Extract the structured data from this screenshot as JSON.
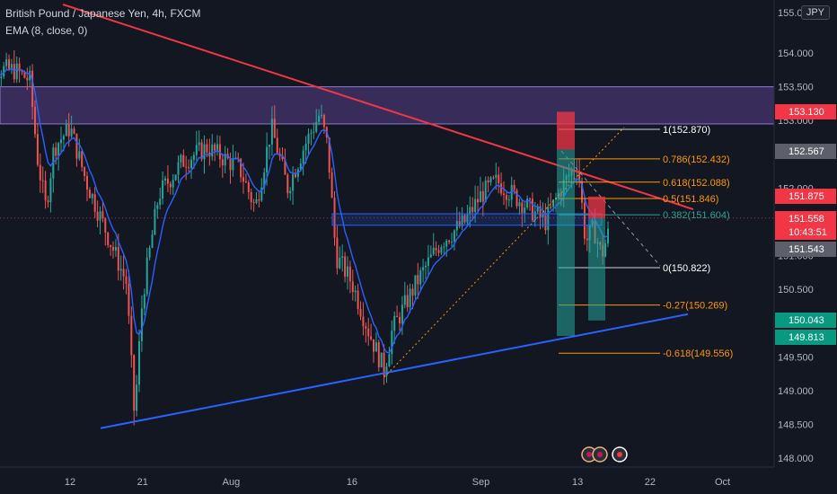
{
  "header": {
    "title": "British Pound / Japanese Yen, 4h, FXCM",
    "indicator": "EMA (8, close, 0)"
  },
  "currency_badge": "JPY",
  "colors": {
    "background": "#131722",
    "up": "#26a69a",
    "down": "#ef5350",
    "ema": "#2962ff",
    "resistance_line": "#f23645",
    "support_line": "#2962ff",
    "zone": "#7e57c2",
    "fib": "#ff9800"
  },
  "chart_data": {
    "type": "candlestick",
    "symbol": "British Pound / Japanese Yen",
    "timeframe": "4h",
    "source": "FXCM",
    "y_range": [
      148.0,
      155.0
    ],
    "y_ticks": [
      "155.000",
      "154.000",
      "153.500",
      "153.000",
      "152.000",
      "151.000",
      "150.500",
      "149.500",
      "149.000",
      "148.500",
      "148.000"
    ],
    "x_ticks": [
      "12",
      "21",
      "Aug",
      "16",
      "Sep",
      "13",
      "22",
      "Oct"
    ],
    "price_path": [
      [
        "Jul 5",
        153.75
      ],
      [
        "Jul 7",
        153.6
      ],
      [
        "Jul 8",
        152.4
      ],
      [
        "Jul 9",
        151.7
      ],
      [
        "Jul 10",
        152.6
      ],
      [
        "Jul 12",
        152.9
      ],
      [
        "Jul 14",
        152.1
      ],
      [
        "Jul 16",
        151.5
      ],
      [
        "Jul 19",
        150.6
      ],
      [
        "Jul 20",
        148.6
      ],
      [
        "Jul 21",
        150.4
      ],
      [
        "Jul 23",
        151.9
      ],
      [
        "Jul 26",
        152.4
      ],
      [
        "Jul 29",
        152.6
      ],
      [
        "Aug 2",
        152.3
      ],
      [
        "Aug 4",
        151.7
      ],
      [
        "Aug 6",
        152.9
      ],
      [
        "Aug 8",
        152.0
      ],
      [
        "Aug 10",
        152.6
      ],
      [
        "Aug 12",
        153.1
      ],
      [
        "Aug 13",
        152.6
      ],
      [
        "Aug 14",
        151.0
      ],
      [
        "Aug 16",
        150.6
      ],
      [
        "Aug 18",
        149.9
      ],
      [
        "Aug 20",
        149.3
      ],
      [
        "Aug 21",
        149.9
      ],
      [
        "Aug 24",
        150.6
      ],
      [
        "Aug 27",
        151.2
      ],
      [
        "Aug 30",
        151.5
      ],
      [
        "Sep 1",
        151.9
      ],
      [
        "Sep 3",
        152.1
      ],
      [
        "Sep 6",
        151.8
      ],
      [
        "Sep 9",
        151.5
      ],
      [
        "Sep 11",
        152.0
      ],
      [
        "Sep 13",
        152.4
      ],
      [
        "Sep 14",
        151.2
      ],
      [
        "Sep 15",
        151.4
      ],
      [
        "Sep 16",
        151.0
      ],
      [
        "Sep 17",
        151.4
      ]
    ],
    "price_labels": [
      {
        "label": "153.130",
        "color": "#f23645"
      },
      {
        "label": "152.567",
        "color": "#5d606b"
      },
      {
        "label": "151.875",
        "color": "#f23645"
      },
      {
        "label": "151.558",
        "color": "#f23645"
      },
      {
        "label": "10:43:51",
        "color": "#f23645"
      },
      {
        "label": "151.543",
        "color": "#5d606b"
      },
      {
        "label": "150.043",
        "color": "#089981"
      },
      {
        "label": "149.813",
        "color": "#089981"
      }
    ],
    "fibonacci": [
      {
        "label": "1(152.870)",
        "price": 152.87,
        "color": "#ffffff"
      },
      {
        "label": "0.786(152.432)",
        "price": 152.432,
        "color": "#ff9800"
      },
      {
        "label": "0.618(152.088)",
        "price": 152.088,
        "color": "#ff9800"
      },
      {
        "label": "0.5(151.846)",
        "price": 151.846,
        "color": "#ff9800"
      },
      {
        "label": "0.382(151.604)",
        "price": 151.604,
        "color": "#26a69a"
      },
      {
        "label": "0(150.822)",
        "price": 150.822,
        "color": "#ffffff"
      },
      {
        "label": "-0.27(150.269)",
        "price": 150.269,
        "color": "#ff9800"
      },
      {
        "label": "-0.618(149.556)",
        "price": 149.556,
        "color": "#ff9800"
      }
    ],
    "resistance_zone": [
      152.95,
      153.5
    ],
    "support_box": [
      151.45,
      151.62
    ],
    "resistance_trendline": [
      [
        "Jul 9",
        154.8
      ],
      [
        "Sep 27",
        151.7
      ]
    ],
    "support_trendline": [
      [
        "Jul 16",
        148.45
      ],
      [
        "Sep 27",
        150.14
      ]
    ],
    "positions": [
      {
        "entry": 152.57,
        "stop": 153.13,
        "target": 149.81
      },
      {
        "entry": 151.55,
        "stop": 151.875,
        "target": 150.04
      }
    ],
    "grid": false,
    "legend": "top-left"
  }
}
